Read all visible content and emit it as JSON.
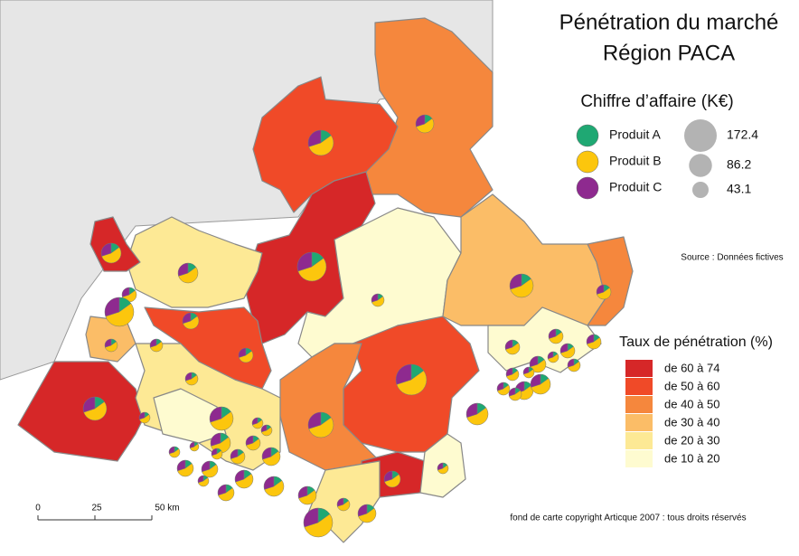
{
  "title": {
    "line1": "Pénétration du marché",
    "line2": "Région PACA"
  },
  "size_legend": {
    "title": "Chiffre d’affaire (K€)",
    "products": [
      {
        "name": "Produit A",
        "color": "#1fa873"
      },
      {
        "name": "Produit B",
        "color": "#fcc60d"
      },
      {
        "name": "Produit C",
        "color": "#8e2a8f"
      }
    ],
    "sizes": [
      172.4,
      86.2,
      43.1
    ],
    "size_color": "#b3b3b3"
  },
  "source": "Source : Données fictives",
  "rate_legend": {
    "title": "Taux de pénétration (%)",
    "classes": [
      {
        "label": "de 60 à 74",
        "color": "#d62728"
      },
      {
        "label": "de 50 à 60",
        "color": "#f04a28"
      },
      {
        "label": "de 40 à 50",
        "color": "#f5873d"
      },
      {
        "label": "de 30 à 40",
        "color": "#fbbd67"
      },
      {
        "label": "de 20 à 30",
        "color": "#fde995"
      },
      {
        "label": "de 10 à 20",
        "color": "#fefbd0"
      }
    ]
  },
  "scale": {
    "labels": [
      "0",
      "25",
      "50 km"
    ]
  },
  "copyright": "fond de carte copyright Articque 2007 : tous droits réservés"
}
